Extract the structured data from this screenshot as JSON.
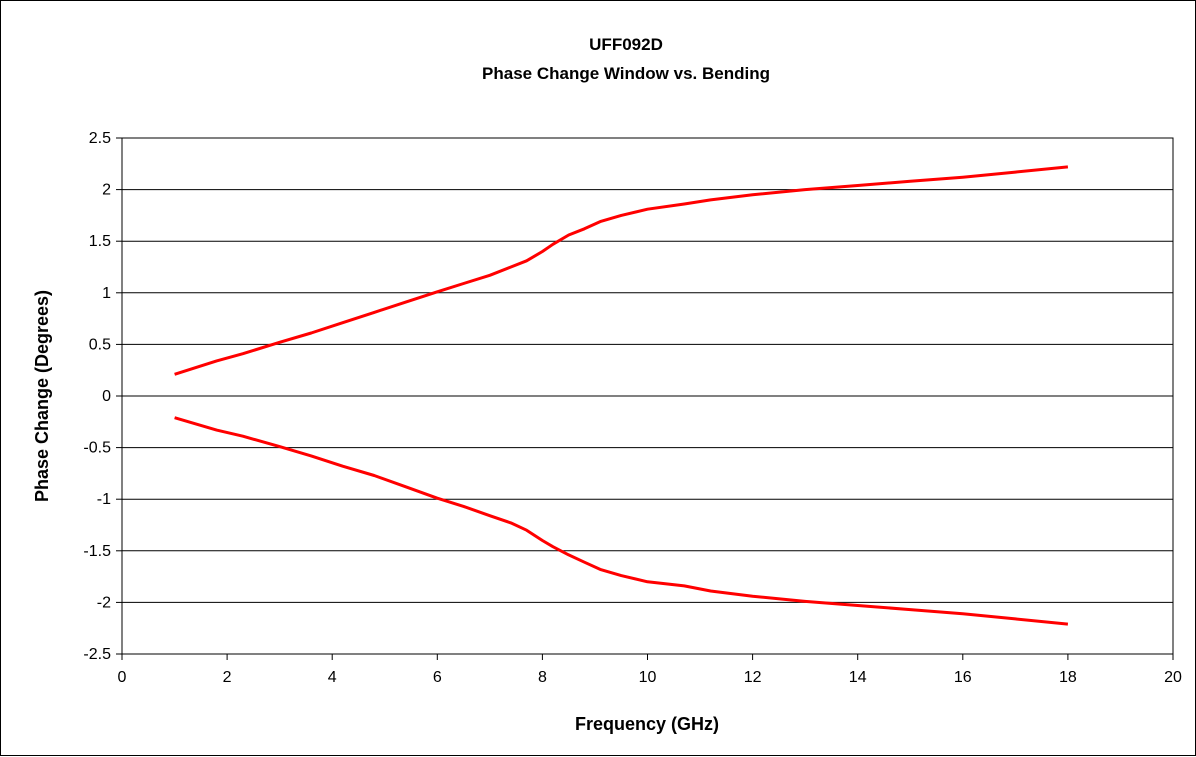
{
  "chart_data": {
    "type": "line",
    "title": "UFF092D",
    "subtitle": "Phase Change Window vs. Bending",
    "xlabel": "Frequency (GHz)",
    "ylabel": "Phase Change (Degrees)",
    "xlim": [
      0,
      20
    ],
    "ylim": [
      -2.5,
      2.5
    ],
    "x_ticks": [
      0,
      2,
      4,
      6,
      8,
      10,
      12,
      14,
      16,
      18,
      20
    ],
    "y_ticks": [
      2.5,
      2,
      1.5,
      1,
      0.5,
      0,
      -0.5,
      -1,
      -1.5,
      -2,
      -2.5
    ],
    "x_tick_labels": [
      "0",
      "2",
      "4",
      "6",
      "8",
      "10",
      "12",
      "14",
      "16",
      "18",
      "20"
    ],
    "y_tick_labels": [
      "2.5",
      "2",
      "1.5",
      "1",
      "0.5",
      "0",
      "-0.5",
      "-1",
      "-1.5",
      "-2",
      "-2.5"
    ],
    "grid": "horizontal",
    "legend": "none",
    "line_color": "#ff0000",
    "series": [
      {
        "x": [
          1.0,
          1.8,
          2.3,
          3.0,
          3.6,
          4.2,
          4.8,
          5.4,
          6.0,
          6.5,
          7.0,
          7.4,
          7.7,
          8.0,
          8.2,
          8.5,
          8.8,
          9.1,
          9.5,
          10.0,
          10.7,
          11.2,
          12.0,
          13.0,
          14.0,
          15.0,
          16.0,
          17.0,
          18.0
        ],
        "y": [
          0.21,
          0.34,
          0.41,
          0.52,
          0.61,
          0.71,
          0.81,
          0.91,
          1.01,
          1.09,
          1.17,
          1.25,
          1.31,
          1.4,
          1.47,
          1.56,
          1.62,
          1.69,
          1.75,
          1.81,
          1.86,
          1.9,
          1.95,
          2.0,
          2.04,
          2.08,
          2.12,
          2.17,
          2.22
        ]
      },
      {
        "x": [
          1.0,
          1.8,
          2.3,
          3.0,
          3.6,
          4.2,
          4.8,
          5.4,
          6.0,
          6.5,
          7.0,
          7.4,
          7.7,
          8.0,
          8.2,
          8.5,
          8.8,
          9.1,
          9.5,
          10.0,
          10.7,
          11.2,
          12.0,
          13.0,
          14.0,
          15.0,
          16.0,
          17.0,
          18.0
        ],
        "y": [
          -0.21,
          -0.33,
          -0.39,
          -0.49,
          -0.58,
          -0.68,
          -0.77,
          -0.88,
          -0.99,
          -1.07,
          -1.16,
          -1.23,
          -1.3,
          -1.4,
          -1.46,
          -1.54,
          -1.61,
          -1.68,
          -1.74,
          -1.8,
          -1.84,
          -1.89,
          -1.94,
          -1.99,
          -2.03,
          -2.07,
          -2.11,
          -2.16,
          -2.21
        ]
      }
    ]
  }
}
